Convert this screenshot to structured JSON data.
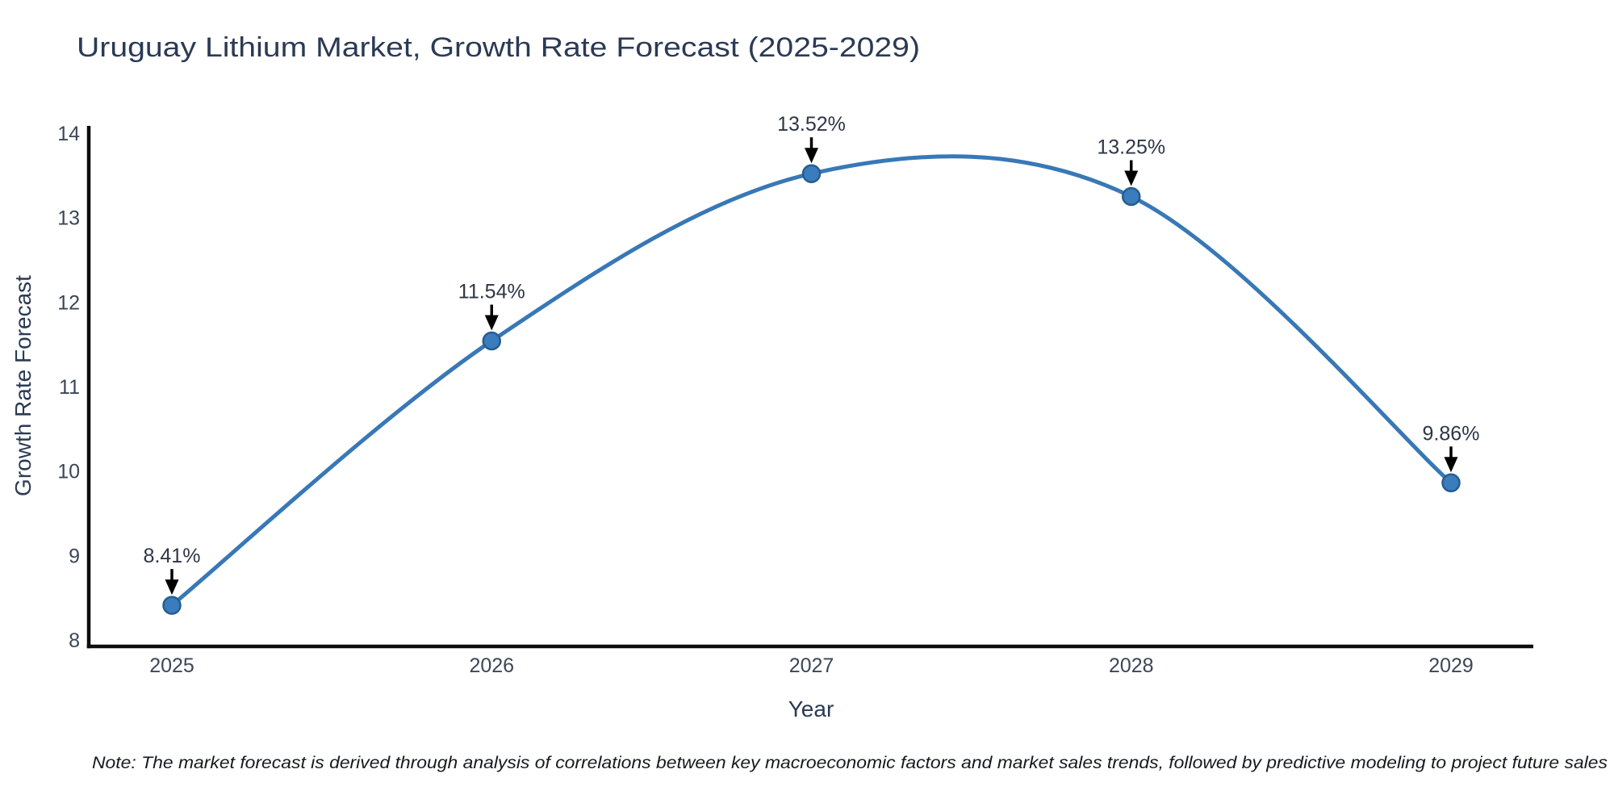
{
  "chart_data": {
    "type": "line",
    "title": "Uruguay Lithium Market, Growth Rate Forecast (2025-2029)",
    "xlabel": "Year",
    "ylabel": "Growth Rate Forecast",
    "categories": [
      "2025",
      "2026",
      "2027",
      "2028",
      "2029"
    ],
    "values": [
      8.41,
      11.54,
      13.52,
      13.25,
      9.86
    ],
    "point_labels": [
      "8.41%",
      "11.54%",
      "13.52%",
      "13.25%",
      "9.86%"
    ],
    "yticks": [
      "8",
      "9",
      "10",
      "11",
      "12",
      "13",
      "14"
    ],
    "ylim": [
      8,
      14
    ],
    "line_shape": "spline",
    "grid": false,
    "legend": "none",
    "note": "Note: The market forecast is derived through analysis of correlations between key macroeconomic factors and market sales trends, followed by predictive modeling to project future sales",
    "colors": {
      "line": "#3878b6",
      "marker_fill": "#3a7cbd",
      "marker_edge": "#265d8c",
      "arrow": "#000000",
      "axis_line": "#0d0d0d",
      "tick_label": "#3c4657",
      "title": "#2b3a55",
      "axis_title": "#2b3a55",
      "annotation": "#2d3646",
      "note": "#17191f",
      "background": "#ffffff"
    }
  }
}
